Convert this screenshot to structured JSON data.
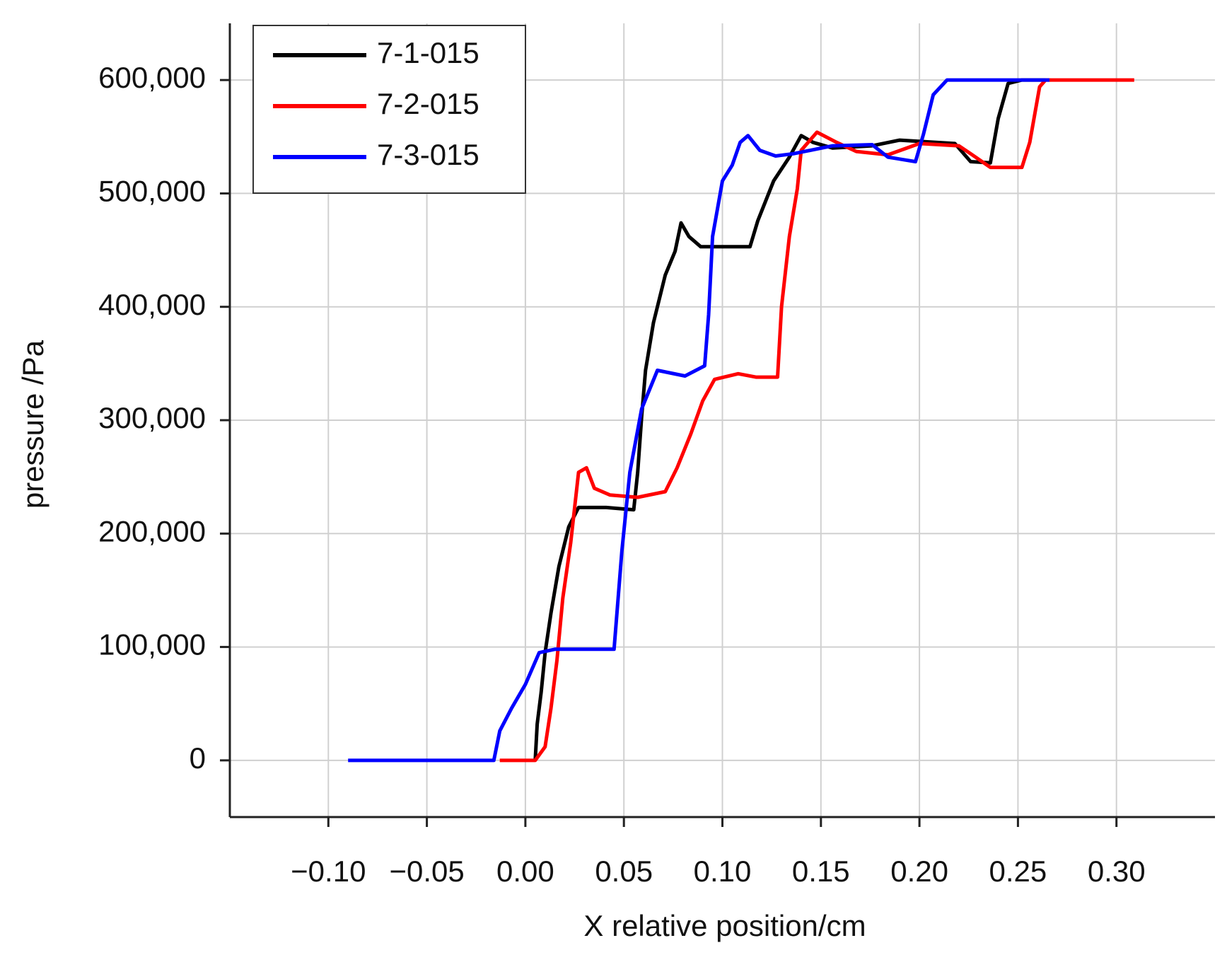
{
  "chart_data": {
    "type": "line",
    "x_label": "X relative position/cm",
    "y_label": "pressure /Pa",
    "xlim": [
      -0.15,
      0.35
    ],
    "ylim": [
      -50000,
      650000
    ],
    "xticks": [
      {
        "value": -0.1,
        "label": "−0.10"
      },
      {
        "value": -0.05,
        "label": "−0.05"
      },
      {
        "value": 0,
        "label": "0.00"
      },
      {
        "value": 0.05,
        "label": "0.05"
      },
      {
        "value": 0.1,
        "label": "0.10"
      },
      {
        "value": 0.15,
        "label": "0.15"
      },
      {
        "value": 0.2,
        "label": "0.20"
      },
      {
        "value": 0.25,
        "label": "0.25"
      },
      {
        "value": 0.3,
        "label": "0.30"
      }
    ],
    "yticks": [
      0,
      {
        "value": 100000,
        "label": "100,000"
      },
      {
        "value": 200000,
        "label": "200,000"
      },
      {
        "value": 300000,
        "label": "300,000"
      },
      {
        "value": 400000,
        "label": "400,000"
      },
      {
        "value": 500000,
        "label": "500,000"
      },
      {
        "value": 600000,
        "label": "600,000"
      }
    ],
    "grid": true,
    "legend": "upper left",
    "series": [
      {
        "name": "7-1-015",
        "color": "#000000",
        "x": [
          0.005,
          0.006,
          0.008,
          0.01,
          0.013,
          0.017,
          0.022,
          0.027,
          0.041,
          0.055,
          0.057,
          0.059,
          0.061,
          0.065,
          0.071,
          0.076,
          0.079,
          0.083,
          0.089,
          0.114,
          0.118,
          0.126,
          0.134,
          0.14,
          0.146,
          0.156,
          0.176,
          0.19,
          0.218,
          0.226,
          0.236,
          0.24,
          0.245,
          0.252,
          0.264
        ],
        "values": [
          0,
          32000,
          60000,
          95000,
          130000,
          171000,
          206000,
          223000,
          223000,
          221000,
          254000,
          303000,
          344000,
          386000,
          428000,
          449000,
          474000,
          462000,
          453000,
          453000,
          476000,
          511000,
          532000,
          551000,
          545000,
          540000,
          542000,
          547000,
          544000,
          528000,
          527000,
          566000,
          597000,
          600000,
          600000
        ]
      },
      {
        "name": "7-2-015",
        "color": "#ff0000",
        "x": [
          -0.013,
          0.005,
          0.01,
          0.013,
          0.016,
          0.019,
          0.023,
          0.027,
          0.031,
          0.035,
          0.043,
          0.057,
          0.071,
          0.077,
          0.084,
          0.09,
          0.096,
          0.108,
          0.117,
          0.128,
          0.13,
          0.134,
          0.138,
          0.14,
          0.148,
          0.158,
          0.168,
          0.184,
          0.2,
          0.22,
          0.226,
          0.236,
          0.252,
          0.256,
          0.261,
          0.264,
          0.309
        ],
        "values": [
          0,
          0,
          12000,
          46000,
          88000,
          143000,
          192000,
          254000,
          258000,
          240000,
          234000,
          232000,
          237000,
          258000,
          288000,
          317000,
          336000,
          341000,
          338000,
          338000,
          400000,
          462000,
          504000,
          538000,
          554000,
          545000,
          537000,
          534000,
          544000,
          542000,
          535000,
          523000,
          523000,
          545000,
          594000,
          600000,
          600000
        ]
      },
      {
        "name": "7-3-015",
        "color": "#0000ff",
        "x": [
          -0.09,
          -0.016,
          -0.013,
          -0.007,
          0.0,
          0.007,
          0.015,
          0.045,
          0.049,
          0.053,
          0.059,
          0.067,
          0.081,
          0.091,
          0.093,
          0.095,
          0.1,
          0.105,
          0.109,
          0.113,
          0.119,
          0.127,
          0.136,
          0.156,
          0.176,
          0.184,
          0.198,
          0.202,
          0.207,
          0.214,
          0.266
        ],
        "values": [
          0,
          0,
          26000,
          46000,
          67000,
          95000,
          98000,
          98000,
          185000,
          254000,
          310000,
          344000,
          339000,
          348000,
          393000,
          462000,
          511000,
          525000,
          545000,
          551000,
          538000,
          533000,
          535000,
          542000,
          543000,
          532000,
          528000,
          552000,
          587000,
          600000,
          600000
        ]
      }
    ]
  }
}
